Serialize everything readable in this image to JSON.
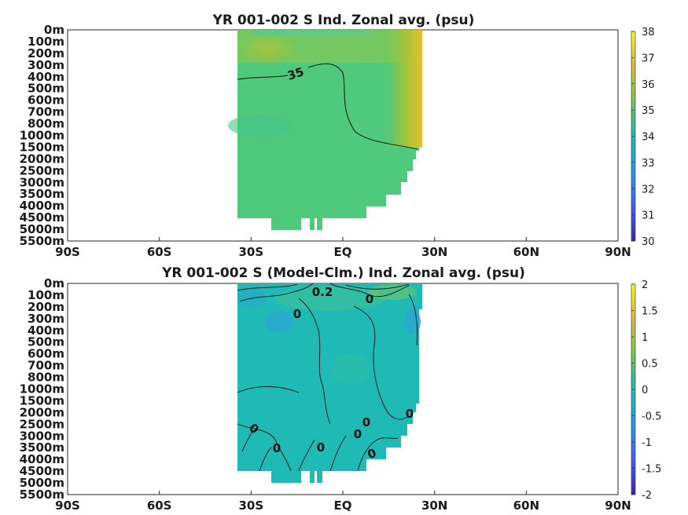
{
  "chart_data": [
    {
      "type": "heatmap",
      "title": "YR 001-002 S Ind. Zonal avg. (psu)",
      "x_tick_labels": [
        "90S",
        "60S",
        "30S",
        "EQ",
        "30N",
        "60N",
        "90N"
      ],
      "x_tick_values": [
        -90,
        -60,
        -30,
        0,
        30,
        60,
        90
      ],
      "xlim": [
        -90,
        90
      ],
      "y_tick_labels": [
        "0m",
        "100m",
        "200m",
        "300m",
        "400m",
        "500m",
        "600m",
        "700m",
        "800m",
        "1000m",
        "1500m",
        "2000m",
        "2500m",
        "3000m",
        "3500m",
        "4000m",
        "4500m",
        "5000m",
        "5500m"
      ],
      "colorbar": {
        "min": 30,
        "max": 38,
        "ticks": [
          "38",
          "37",
          "36",
          "35",
          "34",
          "33",
          "32",
          "31",
          "30"
        ]
      },
      "contour_labels": [
        "35"
      ],
      "data_extent_lat": [
        -34,
        26
      ],
      "field_description_values": {
        "typical": 34.6,
        "max": 37.5
      }
    },
    {
      "type": "heatmap",
      "title": "YR 001-002 S (Model-Clm.) Ind. Zonal avg. (psu)",
      "x_tick_labels": [
        "90S",
        "60S",
        "30S",
        "EQ",
        "30N",
        "60N",
        "90N"
      ],
      "x_tick_values": [
        -90,
        -60,
        -30,
        0,
        30,
        60,
        90
      ],
      "xlim": [
        -90,
        90
      ],
      "y_tick_labels": [
        "0m",
        "100m",
        "200m",
        "300m",
        "400m",
        "500m",
        "600m",
        "700m",
        "800m",
        "1000m",
        "1500m",
        "2000m",
        "2500m",
        "3000m",
        "3500m",
        "4000m",
        "4500m",
        "5000m",
        "5500m"
      ],
      "colorbar": {
        "min": -2,
        "max": 2,
        "ticks": [
          "2",
          "1.5",
          "1",
          "0.5",
          "0",
          "-0.5",
          "-1",
          "-1.5",
          "-2"
        ]
      },
      "contour_labels": [
        "0.2",
        "0",
        "0",
        "0",
        "0",
        "0",
        "0",
        "0",
        "0"
      ],
      "data_extent_lat": [
        -34,
        26
      ]
    }
  ]
}
